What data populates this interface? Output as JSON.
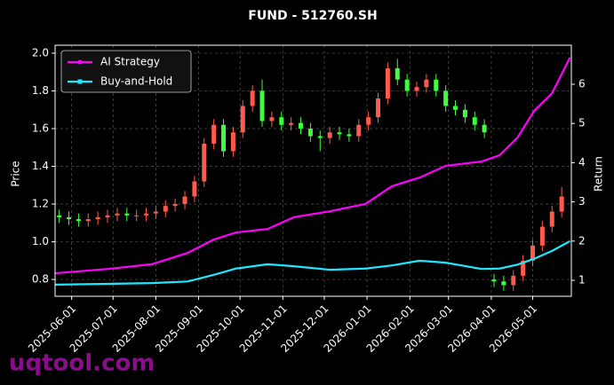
{
  "chart_data": {
    "type": "candlestick",
    "title": "FUND - 512760.SH",
    "ylabel": "Price",
    "y2label": "Return",
    "watermark": "uqtool.com",
    "xlim": [
      "2025-05-20",
      "2026-05-29"
    ],
    "xticks": [
      "2025-06-01",
      "2025-07-01",
      "2025-08-01",
      "2025-09-01",
      "2025-10-01",
      "2025-11-01",
      "2025-12-01",
      "2026-01-01",
      "2026-02-01",
      "2026-03-01",
      "2026-04-01",
      "2026-05-01"
    ],
    "ylim": [
      0.711,
      2.042
    ],
    "yticks": [
      0.8,
      {
        "value": 1.0,
        "label": "1.0"
      },
      1.2,
      1.4,
      1.6,
      1.8,
      {
        "value": 2.0,
        "label": "2.0"
      }
    ],
    "y2lim": [
      0.593,
      6.995
    ],
    "y2ticks": [
      1,
      2,
      3,
      4,
      5,
      6
    ],
    "grid": true,
    "legend": "upper left",
    "up_color": "#ff5a4a",
    "down_color": "#3dff3d",
    "candles": {
      "dates": [
        "2025-05-23",
        "2025-05-30",
        "2025-06-06",
        "2025-06-13",
        "2025-06-20",
        "2025-06-27",
        "2025-07-04",
        "2025-07-11",
        "2025-07-18",
        "2025-07-25",
        "2025-08-01",
        "2025-08-08",
        "2025-08-15",
        "2025-08-22",
        "2025-08-29",
        "2025-09-05",
        "2025-09-12",
        "2025-09-19",
        "2025-09-26",
        "2025-10-03",
        "2025-10-10",
        "2025-10-17",
        "2025-10-24",
        "2025-10-31",
        "2025-11-07",
        "2025-11-14",
        "2025-11-21",
        "2025-11-28",
        "2025-12-05",
        "2025-12-12",
        "2025-12-19",
        "2025-12-26",
        "2026-01-02",
        "2026-01-09",
        "2026-01-16",
        "2026-01-23",
        "2026-01-30",
        "2026-02-06",
        "2026-02-13",
        "2026-02-20",
        "2026-02-27",
        "2026-03-06",
        "2026-03-13",
        "2026-03-20",
        "2026-03-27",
        "2026-04-03",
        "2026-04-10",
        "2026-04-17",
        "2026-04-24",
        "2026-05-01",
        "2026-05-08",
        "2026-05-15",
        "2026-05-22"
      ],
      "open": [
        1.14,
        1.13,
        1.12,
        1.11,
        1.12,
        1.13,
        1.14,
        1.15,
        1.14,
        1.14,
        1.15,
        1.16,
        1.19,
        1.2,
        1.24,
        1.32,
        1.52,
        1.62,
        1.48,
        1.58,
        1.72,
        1.8,
        1.64,
        1.66,
        1.62,
        1.63,
        1.6,
        1.56,
        1.55,
        1.58,
        1.57,
        1.56,
        1.62,
        1.66,
        1.76,
        1.92,
        1.86,
        1.8,
        1.82,
        1.86,
        1.8,
        1.72,
        1.7,
        1.66,
        1.62,
        0.8,
        0.79,
        0.77,
        0.82,
        0.9,
        0.98,
        1.08,
        1.16
      ],
      "high": [
        1.17,
        1.16,
        1.15,
        1.15,
        1.16,
        1.17,
        1.18,
        1.18,
        1.17,
        1.18,
        1.19,
        1.22,
        1.23,
        1.27,
        1.35,
        1.55,
        1.65,
        1.65,
        1.61,
        1.75,
        1.83,
        1.86,
        1.69,
        1.69,
        1.66,
        1.66,
        1.63,
        1.59,
        1.61,
        1.61,
        1.6,
        1.65,
        1.69,
        1.79,
        1.95,
        1.97,
        1.89,
        1.85,
        1.89,
        1.89,
        1.83,
        1.75,
        1.73,
        1.69,
        1.65,
        0.83,
        0.82,
        0.85,
        0.93,
        1.01,
        1.11,
        1.19,
        1.29
      ],
      "low": [
        1.1,
        1.09,
        1.08,
        1.08,
        1.09,
        1.1,
        1.11,
        1.11,
        1.11,
        1.11,
        1.12,
        1.13,
        1.16,
        1.17,
        1.21,
        1.29,
        1.49,
        1.45,
        1.45,
        1.55,
        1.69,
        1.61,
        1.61,
        1.59,
        1.59,
        1.57,
        1.53,
        1.48,
        1.52,
        1.54,
        1.53,
        1.53,
        1.59,
        1.63,
        1.73,
        1.83,
        1.77,
        1.77,
        1.79,
        1.77,
        1.69,
        1.67,
        1.63,
        1.59,
        1.55,
        0.76,
        0.74,
        0.74,
        0.79,
        0.87,
        0.95,
        1.05,
        1.13
      ],
      "close": [
        1.13,
        1.12,
        1.11,
        1.12,
        1.13,
        1.14,
        1.15,
        1.14,
        1.14,
        1.15,
        1.16,
        1.19,
        1.2,
        1.24,
        1.32,
        1.52,
        1.62,
        1.48,
        1.58,
        1.72,
        1.8,
        1.64,
        1.66,
        1.62,
        1.63,
        1.6,
        1.56,
        1.55,
        1.58,
        1.57,
        1.56,
        1.62,
        1.66,
        1.76,
        1.92,
        1.86,
        1.8,
        1.82,
        1.86,
        1.8,
        1.72,
        1.7,
        1.66,
        1.62,
        1.58,
        0.79,
        0.77,
        0.82,
        0.9,
        0.98,
        1.08,
        1.16,
        1.24
      ]
    },
    "x": [
      "2025-05-20",
      "2025-06-27",
      "2025-07-29",
      "2025-08-24",
      "2025-09-12",
      "2025-09-28",
      "2025-10-21",
      "2025-11-09",
      "2025-12-05",
      "2025-12-31",
      "2026-01-19",
      "2026-02-08",
      "2026-02-27",
      "2026-03-25",
      "2026-04-07",
      "2026-04-20",
      "2026-05-02",
      "2026-05-15",
      "2026-05-28"
    ],
    "series": [
      {
        "name": "AI Strategy",
        "color": "#ff00ff",
        "axis": "y2",
        "marker": "circle",
        "values": [
          1.18,
          1.29,
          1.41,
          1.7,
          2.04,
          2.22,
          2.31,
          2.61,
          2.76,
          2.95,
          3.4,
          3.62,
          3.92,
          4.03,
          4.19,
          4.64,
          5.32,
          5.77,
          6.68
        ]
      },
      {
        "name": "Buy-and-Hold",
        "color": "#1ee8ff",
        "axis": "y2",
        "marker": "square",
        "values": [
          0.89,
          0.91,
          0.93,
          0.97,
          1.14,
          1.3,
          1.41,
          1.36,
          1.27,
          1.3,
          1.38,
          1.5,
          1.45,
          1.29,
          1.3,
          1.4,
          1.55,
          1.75,
          2.0
        ]
      }
    ]
  }
}
